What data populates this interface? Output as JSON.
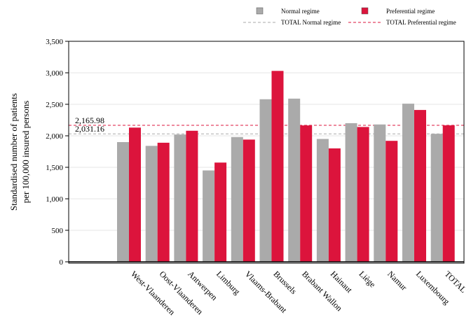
{
  "chart_data": {
    "type": "bar",
    "categories": [
      "West-Vlaanderen",
      "Oost-Vlaanderen",
      "Antwerpen",
      "Limburg",
      "Vlaams-Brabant",
      "Brussels",
      "Brabant Wallon",
      "Hainaut",
      "Liège",
      "Namur",
      "Luxembourg",
      "TOTAL"
    ],
    "series": [
      {
        "name": "Normal regime",
        "color": "#aaaaaa",
        "values": [
          1900,
          1840,
          2020,
          1450,
          1980,
          2580,
          2590,
          1950,
          2200,
          2180,
          2510,
          2031.16
        ]
      },
      {
        "name": "Preferential regime",
        "color": "#dc143c",
        "values": [
          2130,
          1890,
          2080,
          1575,
          1940,
          3030,
          2165,
          1800,
          2140,
          1920,
          2410,
          2165.98
        ]
      }
    ],
    "reference_lines": [
      {
        "name": "TOTAL Normal regime",
        "value": 2031.16,
        "label": "2,031.16",
        "color": "#aaaaaa"
      },
      {
        "name": "TOTAL Preferential regime",
        "value": 2165.98,
        "label": "2,165.98",
        "color": "#dc143c"
      }
    ],
    "ylabel_lines": [
      "Standardised number of patients",
      "per 100,000 insured persons"
    ],
    "xlabel": "",
    "ylim": [
      0,
      3500
    ],
    "yticks": [
      0,
      500,
      1000,
      1500,
      2000,
      2500,
      3000,
      3500
    ],
    "ytick_labels": [
      "0",
      "500",
      "1,000",
      "1,500",
      "2,000",
      "2,500",
      "3,000",
      "3,500"
    ],
    "grid": true,
    "legend_position": "top"
  }
}
